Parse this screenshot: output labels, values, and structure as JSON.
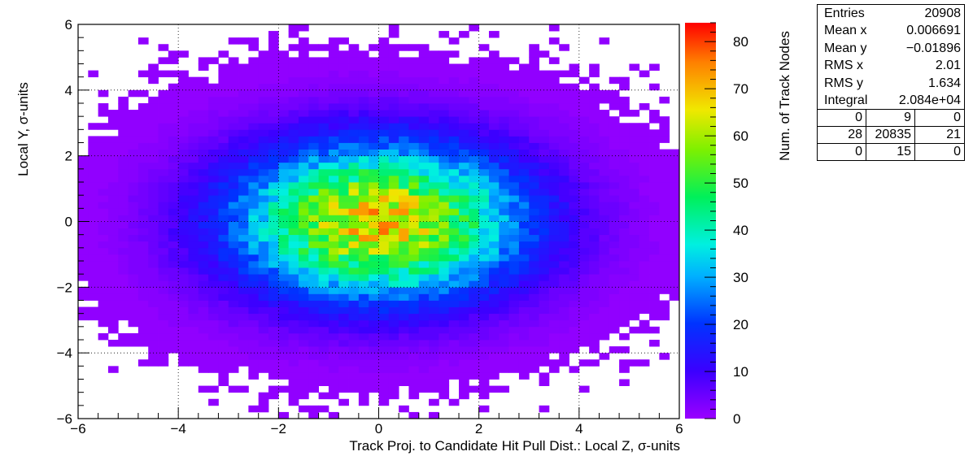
{
  "chart_data": {
    "type": "heatmap",
    "title": "",
    "xlabel": "Track Proj. to Candidate Hit Pull Dist.: Local Z, σ-units",
    "ylabel": "Local Y, σ-units",
    "zlabel": "Num. of Track Nodes",
    "xlim": [
      -6,
      6
    ],
    "ylim": [
      -6,
      6
    ],
    "zlim": [
      0,
      84
    ],
    "x_ticks": [
      "−6",
      "−4",
      "−2",
      "0",
      "2",
      "4",
      "6"
    ],
    "y_ticks": [
      "−6",
      "−4",
      "−2",
      "0",
      "2",
      "4",
      "6"
    ],
    "z_ticks": [
      "0",
      "10",
      "20",
      "30",
      "40",
      "50",
      "60",
      "70",
      "80"
    ],
    "bins": {
      "nx": 60,
      "ny": 60,
      "bin_width": 0.2
    },
    "distribution": {
      "mean_x": 0.006691,
      "mean_y": -0.01896,
      "rms_x": 2.01,
      "rms_y": 1.634,
      "peak_value": 84,
      "peak_location": [
        0,
        0
      ]
    },
    "grid": true,
    "colormap": "rainbow (violet → blue → cyan → green → yellow → red)"
  },
  "stats": {
    "rows": [
      {
        "label": "Entries",
        "value": "20908"
      },
      {
        "label": "Mean x",
        "value": "0.006691"
      },
      {
        "label": "Mean y",
        "value": "−0.01896"
      },
      {
        "label": "RMS x",
        "value": "2.01"
      },
      {
        "label": "RMS y",
        "value": "1.634"
      },
      {
        "label": "Integral",
        "value": "2.084e+04"
      }
    ],
    "bin_table": [
      [
        "0",
        "9",
        "0"
      ],
      [
        "28",
        "20835",
        "21"
      ],
      [
        "0",
        "15",
        "0"
      ]
    ]
  }
}
